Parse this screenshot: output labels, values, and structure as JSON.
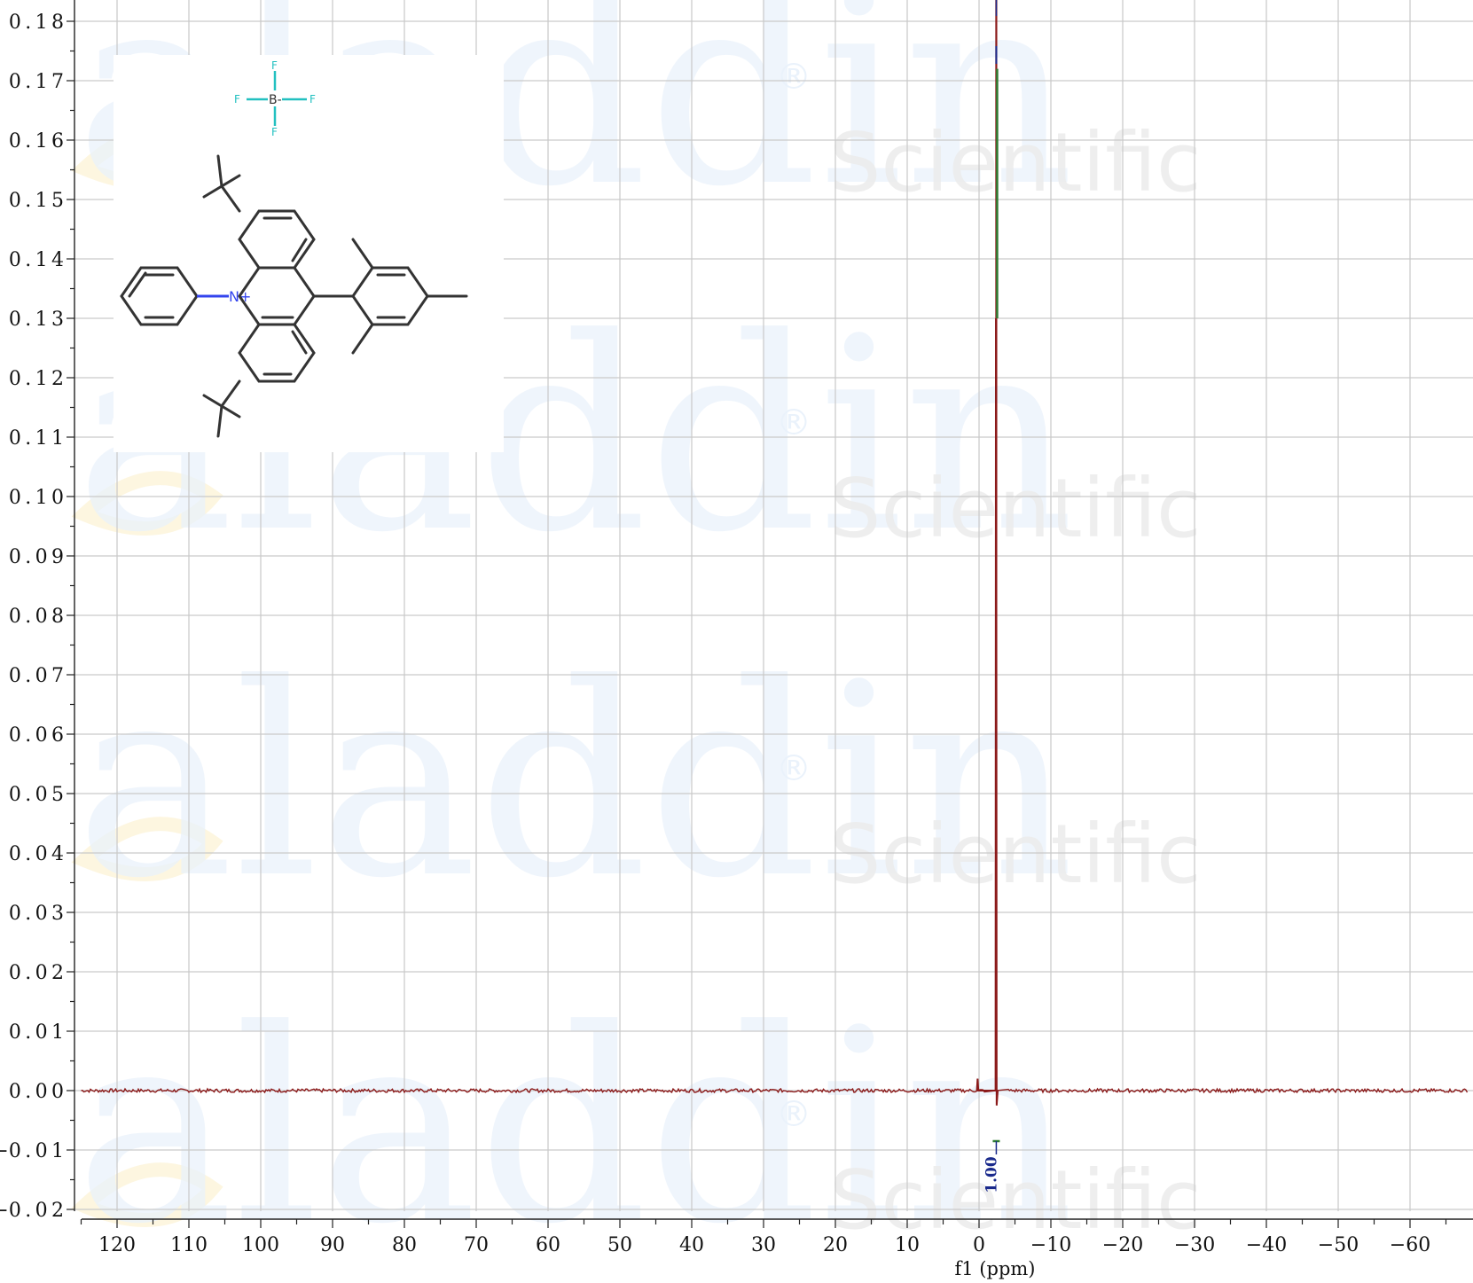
{
  "watermark": {
    "logo": "aladdin",
    "sub": "Scientific",
    "reg": "®"
  },
  "chart_data": {
    "type": "line",
    "xlabel": "f1 (ppm)",
    "ylabel": "",
    "xlim": [
      125,
      -68
    ],
    "ylim": [
      -0.02,
      0.185
    ],
    "x_ticks": [
      120,
      110,
      100,
      90,
      80,
      70,
      60,
      50,
      40,
      30,
      20,
      10,
      0,
      -10,
      -20,
      -30,
      -40,
      -50,
      -60
    ],
    "y_ticks": [
      0.18,
      0.17,
      0.16,
      0.15,
      0.14,
      0.13,
      0.12,
      0.11,
      0.1,
      0.09,
      0.08,
      0.07,
      0.06,
      0.05,
      0.04,
      0.03,
      0.02,
      0.01,
      0.0,
      -0.01,
      -0.02
    ],
    "series": [
      {
        "points": [
          [
            125,
            0.0
          ],
          [
            0.3,
            0.0
          ],
          [
            0.2,
            0.002
          ],
          [
            0.1,
            0.0
          ],
          [
            -2.3,
            0.0
          ],
          [
            -2.35,
            0.13
          ],
          [
            -2.4,
            0.1
          ],
          [
            -2.45,
            -0.0025
          ],
          [
            -2.6,
            0.0
          ],
          [
            -68,
            0.0
          ]
        ]
      }
    ],
    "peak_markers": [
      {
        "x": -2.4
      }
    ],
    "integrals": [
      {
        "x": -2.4,
        "label": "1.00"
      }
    ],
    "structure_labels": {
      "N": "N+",
      "B": "B-",
      "F": "F"
    }
  }
}
